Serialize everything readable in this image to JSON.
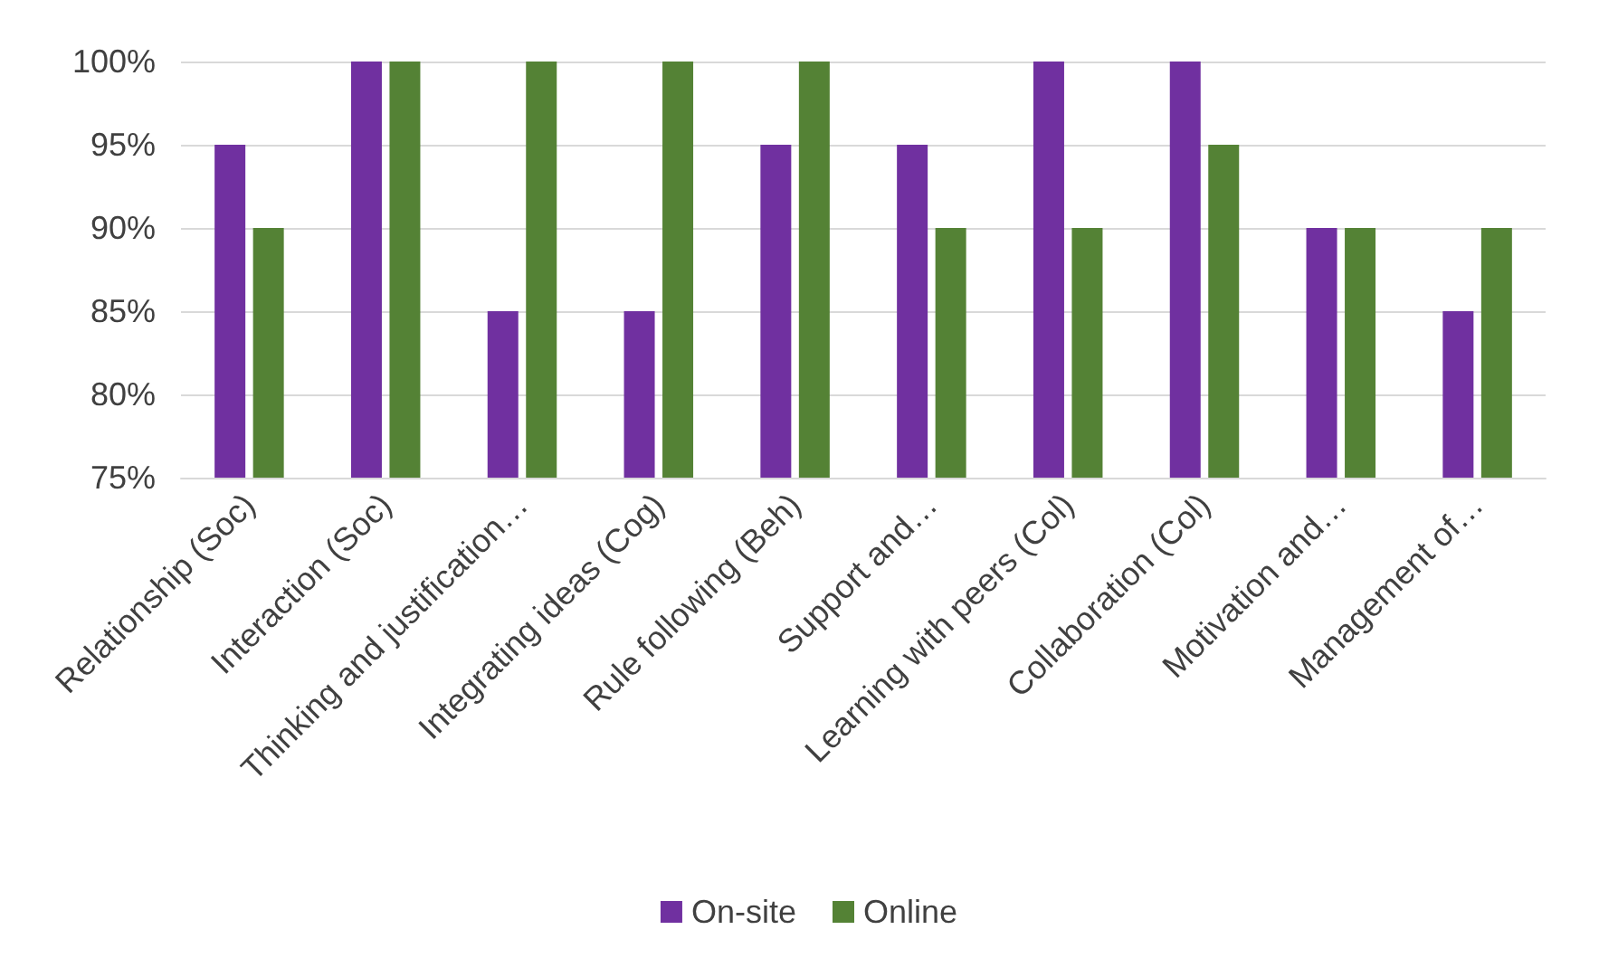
{
  "chart_data": {
    "type": "bar",
    "categories": [
      "Relationship (Soc)",
      "Interaction (Soc)",
      "Thinking and justification…",
      "Integrating ideas (Cog)",
      "Rule following (Beh)",
      "Support and…",
      "Learning with peers (Col)",
      "Collaboration (Col)",
      "Motivation and…",
      "Management of…"
    ],
    "series": [
      {
        "name": "On-site",
        "color": "#7030a0",
        "values": [
          95,
          100,
          85,
          85,
          95,
          95,
          100,
          100,
          90,
          85
        ]
      },
      {
        "name": "Online",
        "color": "#548235",
        "values": [
          90,
          100,
          100,
          100,
          100,
          90,
          90,
          95,
          90,
          90
        ]
      }
    ],
    "ylim": [
      75,
      100
    ],
    "yticks": [
      {
        "value": 75,
        "label": "75%"
      },
      {
        "value": 80,
        "label": "80%"
      },
      {
        "value": 85,
        "label": "85%"
      },
      {
        "value": 90,
        "label": "90%"
      },
      {
        "value": 95,
        "label": "95%"
      },
      {
        "value": 100,
        "label": "100%"
      }
    ],
    "grid": "y",
    "legend": "bottom"
  }
}
